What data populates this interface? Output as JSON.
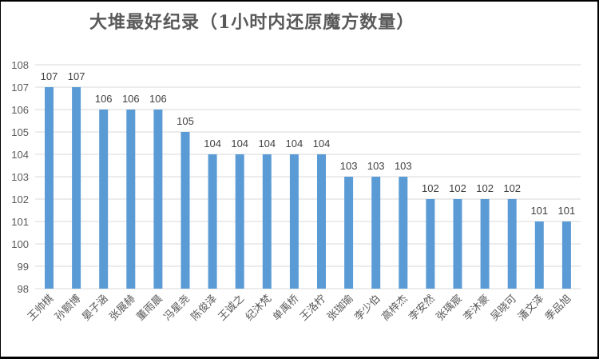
{
  "chart_data": {
    "type": "bar",
    "title": "大堆最好纪录（1小时内还原魔方数量）",
    "xlabel": "",
    "ylabel": "",
    "ylim": [
      98,
      108
    ],
    "yticks": [
      98,
      99,
      100,
      101,
      102,
      103,
      104,
      105,
      106,
      107,
      108
    ],
    "grid": true,
    "legend": null,
    "bar_color": "#5B9BD5",
    "categories": [
      "王帅棋",
      "孙颢博",
      "晏子涵",
      "张展赫",
      "董雨晨",
      "冯星尧",
      "陈俊泽",
      "王诚之",
      "纪沐梵",
      "单禹桥",
      "王洛柠",
      "张珈瑜",
      "李少伯",
      "高梓杰",
      "李安然",
      "张瑀宸",
      "李沐豪",
      "吴晓可",
      "潘文泽",
      "季品旭"
    ],
    "values": [
      107,
      107,
      106,
      106,
      106,
      105,
      104,
      104,
      104,
      104,
      104,
      103,
      103,
      103,
      102,
      102,
      102,
      102,
      101,
      101
    ]
  },
  "colors": {
    "bar": "#5B9BD5",
    "grid": "#D9D9D9",
    "text": "#595959",
    "border": "#000000"
  }
}
